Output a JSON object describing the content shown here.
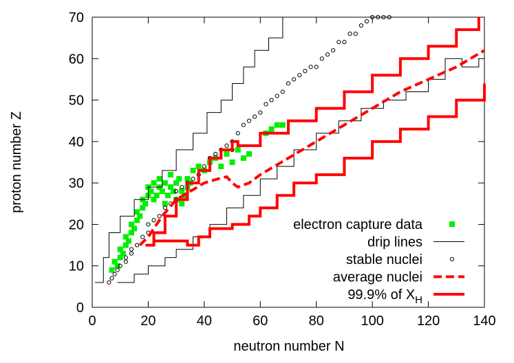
{
  "chart_data": {
    "type": "line",
    "xlabel": "neutron number  N",
    "ylabel": "proton number  Z",
    "xlim": [
      0,
      140
    ],
    "xticks": [
      0,
      20,
      40,
      60,
      80,
      100,
      120,
      140
    ],
    "ylim": [
      0,
      70
    ],
    "yticks": [
      0,
      10,
      20,
      30,
      40,
      50,
      60,
      70
    ],
    "legend": "lower right",
    "series": [
      {
        "name": "electron capture data",
        "mark": "square",
        "color": "#00ee00",
        "x": [
          7,
          8,
          9,
          10,
          10,
          11,
          12,
          12,
          13,
          14,
          14,
          15,
          16,
          16,
          17,
          18,
          18,
          19,
          20,
          20,
          21,
          22,
          22,
          23,
          24,
          24,
          25,
          26,
          26,
          27,
          28,
          28,
          29,
          30,
          30,
          31,
          32,
          32,
          33,
          34,
          34,
          35,
          36,
          38,
          40,
          42,
          44,
          46,
          48,
          50,
          52,
          54,
          56,
          62,
          64,
          66,
          68
        ],
        "values": [
          9,
          11,
          10,
          12,
          14,
          13,
          15,
          17,
          16,
          18,
          20,
          19,
          21,
          23,
          22,
          24,
          26,
          25,
          27,
          29,
          28,
          26,
          30,
          27,
          29,
          31,
          28,
          25,
          30,
          27,
          29,
          32,
          28,
          30,
          26,
          31,
          28,
          25,
          27,
          29,
          31,
          30,
          33,
          34,
          33,
          35,
          36,
          34,
          37,
          35,
          38,
          36,
          37,
          42,
          43,
          44,
          44
        ]
      },
      {
        "name": "drip lines",
        "mark": "steps",
        "color": "#000000",
        "x": [
          1,
          4,
          6,
          10,
          15,
          20,
          25,
          30,
          36,
          41,
          46,
          50,
          54,
          58,
          63,
          68,
          null,
          9,
          15,
          20,
          26,
          30,
          36,
          42,
          48,
          54,
          60,
          66,
          72,
          80,
          88,
          96,
          104,
          112,
          120,
          126,
          132,
          138
        ],
        "values": [
          6,
          12,
          18,
          22,
          26,
          29,
          33,
          38,
          42,
          47,
          50,
          54,
          58,
          62,
          65,
          70,
          null,
          6,
          8,
          10,
          12,
          14,
          17,
          20,
          24,
          27,
          31,
          34,
          38,
          42,
          45,
          48,
          50,
          52,
          55,
          60,
          58,
          60
        ]
      },
      {
        "name": "stable nuclei",
        "mark": "circle",
        "color": "#000000",
        "x": [
          6,
          7,
          8,
          9,
          10,
          12,
          12,
          14,
          14,
          16,
          18,
          20,
          20,
          22,
          24,
          26,
          28,
          30,
          30,
          32,
          34,
          36,
          38,
          40,
          42,
          44,
          46,
          48,
          50,
          50,
          52,
          54,
          56,
          58,
          60,
          62,
          64,
          66,
          68,
          70,
          72,
          74,
          76,
          78,
          80,
          82,
          84,
          86,
          88,
          90,
          92,
          94,
          96,
          98,
          100,
          102,
          104,
          106
        ],
        "values": [
          6,
          7,
          8,
          9,
          10,
          11,
          12,
          13,
          14,
          15,
          17,
          18,
          20,
          21,
          22,
          24,
          25,
          26,
          28,
          29,
          30,
          31,
          32,
          34,
          36,
          37,
          38,
          39,
          38,
          40,
          42,
          44,
          45,
          46,
          47,
          49,
          50,
          51,
          52,
          54,
          55,
          56,
          57,
          58,
          58,
          60,
          61,
          62,
          64,
          64,
          66,
          66,
          68,
          69,
          70,
          70,
          70,
          70
        ]
      },
      {
        "name": "average nuclei",
        "mark": "dashed",
        "color": "#ff0000",
        "x": [
          17,
          20,
          25,
          30,
          35,
          40,
          45,
          48,
          50,
          52,
          56,
          60,
          70,
          80,
          90,
          100,
          110,
          120,
          130,
          140
        ],
        "values": [
          15,
          17,
          22,
          26,
          28,
          30,
          31,
          31.5,
          30,
          29,
          30,
          32,
          36,
          40,
          44,
          48,
          52,
          55,
          58,
          62
        ]
      },
      {
        "name": "99.9% of X",
        "name_sub": "H",
        "mark": "thicksteps",
        "color": "#ff0000",
        "x": [
          19,
          22,
          26,
          30,
          34,
          38,
          42,
          46,
          50,
          52,
          56,
          60,
          70,
          80,
          90,
          100,
          110,
          120,
          130,
          138,
          null,
          19,
          22,
          30,
          34,
          38,
          42,
          46,
          50,
          56,
          60,
          66,
          72,
          80,
          90,
          100,
          110,
          120,
          130,
          140
        ],
        "values": [
          15,
          18,
          22,
          26,
          30,
          33,
          36,
          38,
          40,
          39,
          39,
          42,
          45,
          48,
          52,
          56,
          60,
          63,
          67,
          70,
          null,
          15,
          16,
          16,
          15,
          17,
          19,
          19,
          20,
          22,
          24,
          27,
          30,
          32,
          36,
          40,
          43,
          46,
          50,
          54
        ]
      }
    ]
  }
}
